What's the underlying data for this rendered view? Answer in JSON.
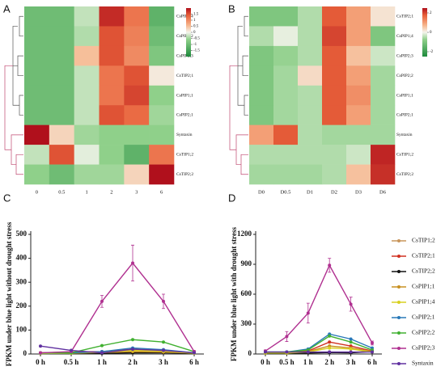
{
  "chart_data": [
    {
      "type": "heatmap",
      "panel": "A",
      "rows": [
        "CsPIP1;4",
        "CsPIP2;2",
        "CsPIP2;3",
        "CsTIP2;1",
        "CsPIP1;1",
        "CsPIP2;1",
        "Syntaxin",
        "CsTIP1;2",
        "CsTIP2;2"
      ],
      "columns": [
        "0",
        "0.5",
        "1",
        "2",
        "3",
        "6"
      ],
      "values": [
        [
          -1,
          -1,
          -0.3,
          1.8,
          1.2,
          -1.2
        ],
        [
          -1,
          -1,
          -0.4,
          1.5,
          1.1,
          -1
        ],
        [
          -1,
          -1,
          0.5,
          1.5,
          1,
          -0.8
        ],
        [
          -1,
          -1,
          -0.3,
          1.2,
          1.5,
          0.1
        ],
        [
          -1,
          -1,
          -0.3,
          1.2,
          1.6,
          -0.6
        ],
        [
          -1,
          -1,
          -0.3,
          1.5,
          1.3,
          -0.5
        ],
        [
          2,
          0.3,
          -0.5,
          -0.6,
          -0.6,
          -0.6
        ],
        [
          -0.3,
          1.5,
          -0.1,
          -0.6,
          -1.2,
          1.2
        ],
        [
          -0.6,
          -1,
          -0.5,
          -0.5,
          0.3,
          2
        ]
      ],
      "clim": [
        -2,
        2
      ],
      "colorbar_ticks": [
        1.5,
        1,
        0.5,
        0,
        -0.5,
        -1,
        -1.5
      ]
    },
    {
      "type": "heatmap",
      "panel": "B",
      "rows": [
        "CsTIP2;1",
        "CsPIP1;4",
        "CsPIP2;3",
        "CsPIP2;2",
        "CsPIP1;1",
        "CsPIP2;1",
        "Syntaxin",
        "CsTIP1;2",
        "CsTIP2;2"
      ],
      "columns": [
        "D0",
        "D0.5",
        "D1",
        "D2",
        "D3",
        "D6"
      ],
      "values": [
        [
          -1,
          -1,
          -0.5,
          1.8,
          1,
          0.2
        ],
        [
          -0.5,
          -0.1,
          -0.5,
          2,
          1,
          -1
        ],
        [
          -1,
          -0.7,
          -0.5,
          1.8,
          0.6,
          -0.3
        ],
        [
          -1,
          -0.6,
          0.3,
          1.8,
          1,
          -0.6
        ],
        [
          -1,
          -0.6,
          -0.5,
          1.8,
          1.2,
          -0.6
        ],
        [
          -1,
          -0.6,
          -0.5,
          1.8,
          1,
          -0.6
        ],
        [
          1,
          1.8,
          -0.5,
          -0.6,
          -0.6,
          -0.6
        ],
        [
          -0.5,
          -0.5,
          -0.5,
          -0.5,
          -0.3,
          2.3
        ],
        [
          -0.6,
          -0.6,
          -0.6,
          -0.5,
          0.6,
          2.2
        ]
      ],
      "clim": [
        -2.5,
        2.5
      ],
      "colorbar_ticks": [
        2,
        0,
        -2
      ]
    },
    {
      "type": "line",
      "panel": "C",
      "ylabel": "FPKM under blue light without drought stress",
      "categories": [
        "0 h",
        "0.5 h",
        "1 h",
        "2 h",
        "3 h",
        "6 h"
      ],
      "ylim": [
        0,
        500
      ],
      "yticks": [
        0,
        100,
        200,
        300,
        400,
        500
      ],
      "series": [
        {
          "name": "CsTIP1;2",
          "color": "#c8955a",
          "values": [
            3,
            5,
            5,
            8,
            6,
            4
          ]
        },
        {
          "name": "CsTIP2;1",
          "color": "#d03020",
          "values": [
            5,
            8,
            10,
            20,
            15,
            5
          ]
        },
        {
          "name": "CsTIP2;2",
          "color": "#111111",
          "values": [
            2,
            3,
            3,
            5,
            5,
            3
          ]
        },
        {
          "name": "CsPIP1;1",
          "color": "#c89020",
          "values": [
            3,
            4,
            6,
            10,
            8,
            4
          ]
        },
        {
          "name": "CsPIP1;4",
          "color": "#d8d020",
          "values": [
            2,
            3,
            8,
            15,
            12,
            3
          ]
        },
        {
          "name": "CsPIP2;1",
          "color": "#2878b8",
          "values": [
            4,
            5,
            10,
            25,
            18,
            5
          ]
        },
        {
          "name": "CsPIP2;2",
          "color": "#40b030",
          "values": [
            5,
            5,
            35,
            60,
            50,
            10
          ]
        },
        {
          "name": "CsPIP2;3",
          "color": "#b03090",
          "values": [
            5,
            10,
            220,
            380,
            220,
            10
          ],
          "errors": [
            2,
            3,
            25,
            75,
            30,
            4
          ]
        },
        {
          "name": "Syntaxin",
          "color": "#6030a0",
          "values": [
            33,
            15,
            5,
            20,
            15,
            5
          ]
        }
      ]
    },
    {
      "type": "line",
      "panel": "D",
      "ylabel": "FPKM under blue light with drought stress",
      "categories": [
        "0 h",
        "0.5 h",
        "1 h",
        "2 h",
        "3 h",
        "6 h"
      ],
      "ylim": [
        0,
        1200
      ],
      "yticks": [
        0,
        300,
        600,
        900,
        1200
      ],
      "legend": "right",
      "series": [
        {
          "name": "CsTIP1;2",
          "color": "#c8955a",
          "values": [
            10,
            10,
            12,
            20,
            15,
            30
          ]
        },
        {
          "name": "CsTIP2;1",
          "color": "#d03020",
          "values": [
            15,
            15,
            30,
            120,
            80,
            30
          ]
        },
        {
          "name": "CsTIP2;2",
          "color": "#111111",
          "values": [
            8,
            8,
            10,
            15,
            12,
            25
          ]
        },
        {
          "name": "CsPIP1;1",
          "color": "#c89020",
          "values": [
            10,
            10,
            25,
            80,
            60,
            25
          ]
        },
        {
          "name": "CsPIP1;4",
          "color": "#d8d020",
          "values": [
            10,
            10,
            20,
            60,
            50,
            20
          ]
        },
        {
          "name": "CsPIP2;1",
          "color": "#2878b8",
          "values": [
            20,
            20,
            50,
            200,
            150,
            60
          ]
        },
        {
          "name": "CsPIP2;2",
          "color": "#40b030",
          "values": [
            20,
            20,
            40,
            180,
            120,
            40
          ]
        },
        {
          "name": "CsPIP2;3",
          "color": "#b03090",
          "values": [
            30,
            175,
            410,
            890,
            500,
            110
          ],
          "errors": [
            10,
            50,
            100,
            70,
            70,
            20
          ]
        },
        {
          "name": "Syntaxin",
          "color": "#6030a0",
          "values": [
            20,
            20,
            20,
            20,
            20,
            20
          ]
        }
      ]
    }
  ]
}
